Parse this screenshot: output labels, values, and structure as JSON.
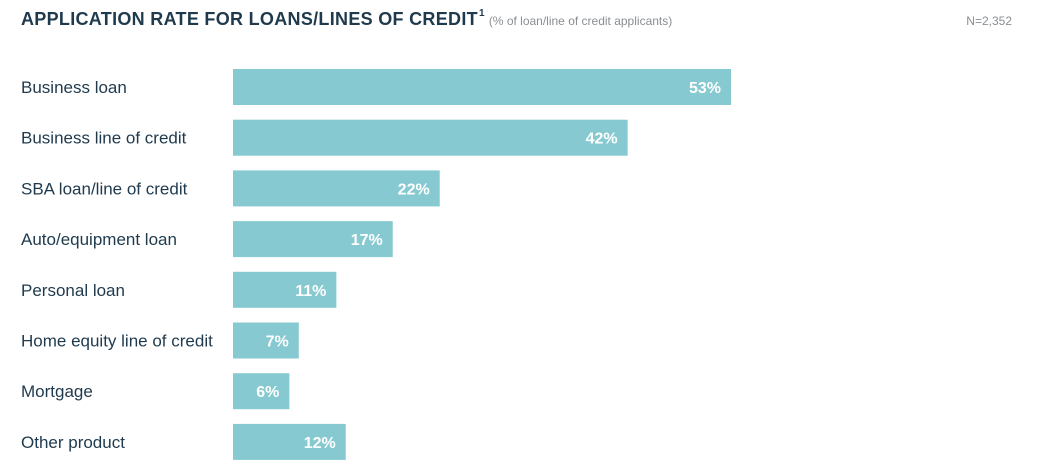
{
  "header": {
    "title": "APPLICATION RATE FOR LOANS/LINES OF CREDIT",
    "footnote_mark": "1",
    "subtitle": "(% of loan/line of credit applicants)",
    "sample_size": "N=2,352"
  },
  "chart_data": {
    "type": "bar",
    "orientation": "horizontal",
    "title": "APPLICATION RATE FOR LOANS/LINES OF CREDIT",
    "subtitle": "(% of loan/line of credit applicants)",
    "categories": [
      "Business loan",
      "Business line of credit",
      "SBA loan/line of credit",
      "Auto/equipment loan",
      "Personal loan",
      "Home equity line of credit",
      "Mortgage",
      "Other product"
    ],
    "values": [
      53,
      42,
      22,
      17,
      11,
      7,
      6,
      12
    ],
    "value_labels": [
      "53%",
      "42%",
      "22%",
      "17%",
      "11%",
      "7%",
      "6%",
      "12%"
    ],
    "xlim": [
      0,
      100
    ],
    "grid": false,
    "bar_color": "#86c9d0",
    "label_color": "#ffffff",
    "text_color": "#1f3a4d"
  }
}
